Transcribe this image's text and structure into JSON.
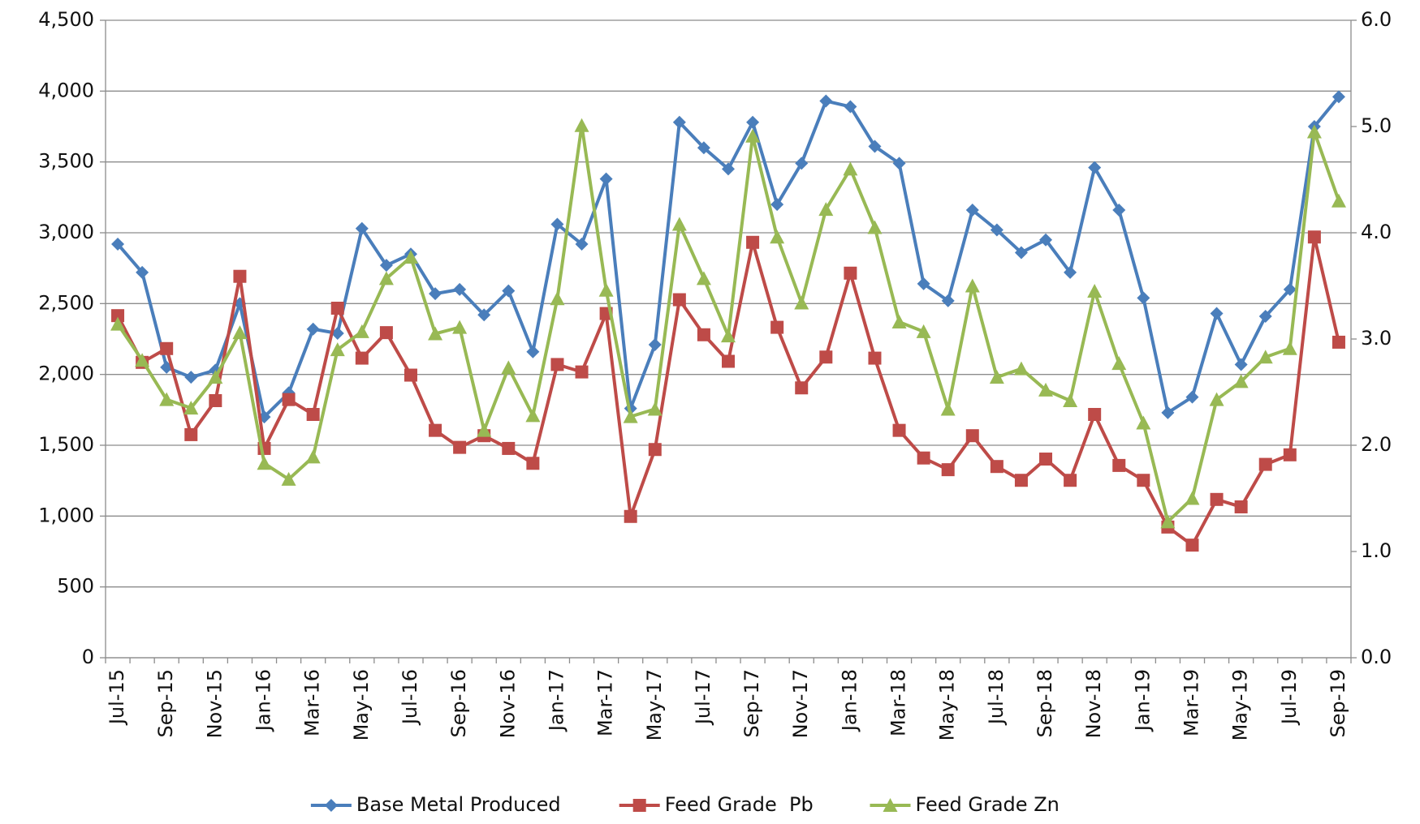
{
  "chart_data": {
    "type": "line",
    "categories": [
      "Jul-15",
      null,
      "Sep-15",
      null,
      "Nov-15",
      null,
      "Jan-16",
      null,
      "Mar-16",
      null,
      "May-16",
      null,
      "Jul-16",
      null,
      "Sep-16",
      null,
      "Nov-16",
      null,
      "Jan-17",
      null,
      "Mar-17",
      null,
      "May-17",
      null,
      "Jul-17",
      null,
      "Sep-17",
      null,
      "Nov-17",
      null,
      "Jan-18",
      null,
      "Mar-18",
      null,
      "May-18",
      null,
      "Jul-18",
      null,
      "Sep-18",
      null,
      "Nov-18",
      null,
      "Jan-19",
      null,
      "Mar-19",
      null,
      "May-19",
      null,
      "Jul-19",
      null,
      "Sep-19"
    ],
    "series": [
      {
        "name": "Base Metal Produced",
        "color": "#4a7ebb",
        "marker": "diamond",
        "axis": "y",
        "values": [
          2920,
          2720,
          2050,
          1980,
          2030,
          2500,
          1700,
          1870,
          2320,
          2290,
          3030,
          2770,
          2850,
          2570,
          2600,
          2420,
          2590,
          2160,
          3060,
          2920,
          3380,
          1760,
          2210,
          3780,
          3600,
          3450,
          3780,
          3200,
          3490,
          3930,
          3890,
          3610,
          3490,
          2640,
          2520,
          3160,
          3020,
          2860,
          2950,
          2720,
          3460,
          3160,
          2540,
          1730,
          1840,
          2430,
          2070,
          2410,
          2600,
          3750,
          3960
        ]
      },
      {
        "name": "Feed Grade  Pb",
        "color": "#be4b48",
        "marker": "square",
        "axis": "y2",
        "values": [
          3.22,
          2.78,
          2.91,
          2.1,
          2.42,
          3.59,
          1.97,
          2.43,
          2.29,
          3.29,
          2.82,
          3.06,
          2.66,
          2.14,
          1.98,
          2.09,
          1.97,
          1.83,
          2.76,
          2.69,
          3.24,
          1.33,
          1.96,
          3.37,
          3.04,
          2.79,
          3.91,
          3.11,
          2.54,
          2.83,
          3.62,
          2.82,
          2.14,
          1.88,
          1.77,
          2.09,
          1.8,
          1.67,
          1.87,
          1.67,
          2.29,
          1.81,
          1.67,
          1.23,
          1.06,
          1.49,
          1.42,
          1.82,
          1.91,
          3.96,
          2.97
        ]
      },
      {
        "name": "Feed Grade Zn",
        "color": "#98b954",
        "marker": "triangle",
        "axis": "y2",
        "values": [
          3.14,
          2.8,
          2.43,
          2.35,
          2.64,
          3.06,
          1.83,
          1.68,
          1.89,
          2.9,
          3.07,
          3.57,
          3.77,
          3.05,
          3.11,
          2.14,
          2.73,
          2.28,
          3.38,
          5.01,
          3.46,
          2.27,
          2.34,
          4.08,
          3.57,
          3.03,
          4.91,
          3.96,
          3.34,
          4.22,
          4.6,
          4.05,
          3.16,
          3.07,
          2.34,
          3.5,
          2.64,
          2.72,
          2.52,
          2.42,
          3.45,
          2.77,
          2.21,
          1.28,
          1.5,
          2.43,
          2.6,
          2.83,
          2.91,
          4.95,
          4.3
        ]
      }
    ],
    "ylim": [
      0,
      4500
    ],
    "yticks": [
      0,
      500,
      {
        "value": 1000,
        "label": "1,000"
      },
      {
        "value": 1500,
        "label": "1,500"
      },
      {
        "value": 2000,
        "label": "2,000"
      },
      {
        "value": 2500,
        "label": "2,500"
      },
      {
        "value": 3000,
        "label": "3,000"
      },
      {
        "value": 3500,
        "label": "3,500"
      },
      {
        "value": 4000,
        "label": "4,000"
      },
      {
        "value": 4500,
        "label": "4,500"
      }
    ],
    "y2lim": [
      0,
      6
    ],
    "y2ticks": [
      {
        "value": 0,
        "label": "0.0"
      },
      {
        "value": 1,
        "label": "1.0"
      },
      {
        "value": 2,
        "label": "2.0"
      },
      {
        "value": 3,
        "label": "3.0"
      },
      {
        "value": 4,
        "label": "4.0"
      },
      {
        "value": 5,
        "label": "5.0"
      },
      {
        "value": 6,
        "label": "6.0"
      }
    ],
    "grid": true,
    "legend": "bottom"
  }
}
